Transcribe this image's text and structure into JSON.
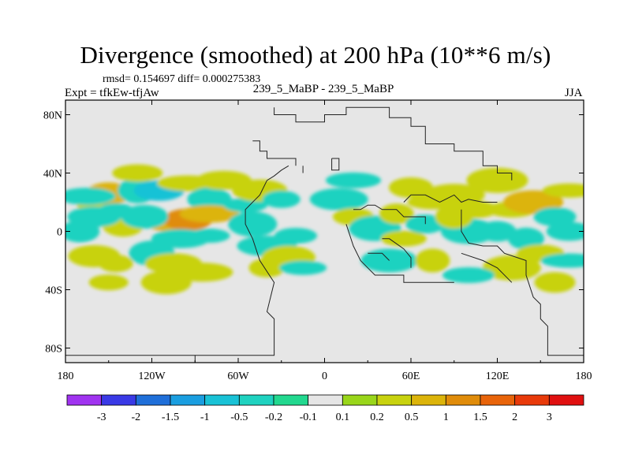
{
  "header": {
    "title": "Divergence (smoothed) at 200 hPa (10**6 m/s)",
    "stats": "rmsd= 0.154697 diff= 0.000275383",
    "experiment": "Expt = tfkEw-tfjAw",
    "case_label": "239_5_MaBP - 239_5_MaBP",
    "season": "JJA"
  },
  "chart_data": {
    "type": "heatmap",
    "title": "Divergence (smoothed) at 200 hPa (10**6 m/s)",
    "xlabel": "",
    "ylabel": "",
    "x_ticks": [
      "180",
      "120W",
      "60W",
      "0",
      "60E",
      "120E",
      "180"
    ],
    "y_ticks": [
      "80N",
      "40N",
      "0",
      "40S",
      "80S"
    ],
    "xlim": [
      -180,
      180
    ],
    "ylim": [
      -90,
      90
    ],
    "background_color": "#e6e6e6",
    "colorbar": {
      "labels": [
        "-3",
        "-2",
        "-1.5",
        "-1",
        "-0.5",
        "-0.2",
        "-0.1",
        "0.1",
        "0.2",
        "0.5",
        "1",
        "1.5",
        "2",
        "3"
      ],
      "colors": [
        "#a033f0",
        "#3a3ae6",
        "#1f6fd9",
        "#1a9ee0",
        "#19c2d6",
        "#1fd2c0",
        "#22d88f",
        "#e6e6e6",
        "#99d61a",
        "#c8d20f",
        "#dcb40a",
        "#e08c0a",
        "#e8640a",
        "#e83a0a",
        "#e01010"
      ]
    },
    "field_blobs": [
      {
        "lon": -160,
        "lat": 18,
        "level": "0.2"
      },
      {
        "lon": -150,
        "lat": 26,
        "level": "0.5"
      },
      {
        "lon": -165,
        "lat": 24,
        "level": "-0.2"
      },
      {
        "lon": -130,
        "lat": 28,
        "level": "-0.2"
      },
      {
        "lon": -115,
        "lat": 28,
        "level": "-0.5"
      },
      {
        "lon": -95,
        "lat": 33,
        "level": "0.2"
      },
      {
        "lon": -80,
        "lat": 22,
        "level": "-0.2"
      },
      {
        "lon": -70,
        "lat": 35,
        "level": "0.2"
      },
      {
        "lon": -110,
        "lat": 5,
        "level": "0.5"
      },
      {
        "lon": -95,
        "lat": 8,
        "level": "1"
      },
      {
        "lon": -80,
        "lat": 12,
        "level": "0.5"
      },
      {
        "lon": -140,
        "lat": 5,
        "level": "0.2"
      },
      {
        "lon": -160,
        "lat": 10,
        "level": "-0.2"
      },
      {
        "lon": -145,
        "lat": 14,
        "level": "-0.2"
      },
      {
        "lon": -125,
        "lat": 10,
        "level": "-0.2"
      },
      {
        "lon": -100,
        "lat": -5,
        "level": "-0.2"
      },
      {
        "lon": -80,
        "lat": -3,
        "level": "-0.2"
      },
      {
        "lon": -160,
        "lat": -17,
        "level": "0.2"
      },
      {
        "lon": -145,
        "lat": -22,
        "level": "0.2"
      },
      {
        "lon": -120,
        "lat": -15,
        "level": "-0.2"
      },
      {
        "lon": -105,
        "lat": -22,
        "level": "0.2"
      },
      {
        "lon": -150,
        "lat": -35,
        "level": "0.2"
      },
      {
        "lon": -110,
        "lat": -35,
        "level": "0.2"
      },
      {
        "lon": -85,
        "lat": -28,
        "level": "0.2"
      },
      {
        "lon": -55,
        "lat": 18,
        "level": "-0.2"
      },
      {
        "lon": -45,
        "lat": 28,
        "level": "0.2"
      },
      {
        "lon": -30,
        "lat": 22,
        "level": "-0.2"
      },
      {
        "lon": -50,
        "lat": 5,
        "level": "-0.2"
      },
      {
        "lon": -40,
        "lat": -10,
        "level": "-0.2"
      },
      {
        "lon": -20,
        "lat": -3,
        "level": "-0.2"
      },
      {
        "lon": -25,
        "lat": -18,
        "level": "0.2"
      },
      {
        "lon": -40,
        "lat": -25,
        "level": "0.2"
      },
      {
        "lon": -15,
        "lat": -25,
        "level": "-0.2"
      },
      {
        "lon": 10,
        "lat": 22,
        "level": "-0.2"
      },
      {
        "lon": 20,
        "lat": 10,
        "level": "0.2"
      },
      {
        "lon": 35,
        "lat": 2,
        "level": "-0.2"
      },
      {
        "lon": 50,
        "lat": 12,
        "level": "0.2"
      },
      {
        "lon": 55,
        "lat": -5,
        "level": "0.2"
      },
      {
        "lon": 45,
        "lat": -20,
        "level": "-0.2"
      },
      {
        "lon": 70,
        "lat": 5,
        "level": "-0.2"
      },
      {
        "lon": 75,
        "lat": 20,
        "level": "0.2"
      },
      {
        "lon": 90,
        "lat": 25,
        "level": "0.2"
      },
      {
        "lon": 105,
        "lat": 15,
        "level": "0.2"
      },
      {
        "lon": 100,
        "lat": 0,
        "level": "-0.2"
      },
      {
        "lon": 120,
        "lat": 0,
        "level": "-0.2"
      },
      {
        "lon": 130,
        "lat": 15,
        "level": "0.2"
      },
      {
        "lon": 145,
        "lat": 20,
        "level": "0.5"
      },
      {
        "lon": 160,
        "lat": 10,
        "level": "-0.2"
      },
      {
        "lon": 170,
        "lat": 28,
        "level": "0.2"
      },
      {
        "lon": 140,
        "lat": -5,
        "level": "-0.2"
      },
      {
        "lon": 150,
        "lat": -15,
        "level": "0.2"
      },
      {
        "lon": 130,
        "lat": -25,
        "level": "0.2"
      },
      {
        "lon": 160,
        "lat": -35,
        "level": "0.2"
      },
      {
        "lon": 100,
        "lat": -30,
        "level": "-0.2"
      },
      {
        "lon": 75,
        "lat": -20,
        "level": "0.2"
      },
      {
        "lon": 170,
        "lat": 0,
        "level": "-0.2"
      },
      {
        "lon": 170,
        "lat": -20,
        "level": "-0.2"
      },
      {
        "lon": -170,
        "lat": 0,
        "level": "-0.2"
      },
      {
        "lon": -130,
        "lat": 40,
        "level": "0.2"
      },
      {
        "lon": 120,
        "lat": 35,
        "level": "0.2"
      },
      {
        "lon": 60,
        "lat": 30,
        "level": "0.2"
      },
      {
        "lon": 20,
        "lat": 35,
        "level": "-0.2"
      },
      {
        "lon": 90,
        "lat": 10,
        "level": "0.2"
      }
    ],
    "boundary_polylines": [
      [
        [
          -90,
          -90
        ],
        [
          -90,
          -85
        ],
        [
          -35,
          -85
        ],
        [
          -35,
          -60
        ],
        [
          -40,
          -55
        ],
        [
          -35,
          -35
        ],
        [
          -45,
          -20
        ],
        [
          -50,
          -5
        ],
        [
          -55,
          5
        ],
        [
          -55,
          15
        ],
        [
          -45,
          25
        ],
        [
          -40,
          35
        ],
        [
          -35,
          38
        ],
        [
          -30,
          42
        ],
        [
          -25,
          45
        ]
      ],
      [
        [
          -35,
          85
        ],
        [
          -35,
          80
        ],
        [
          -20,
          80
        ],
        [
          -20,
          75
        ],
        [
          0,
          75
        ],
        [
          0,
          80
        ],
        [
          15,
          80
        ],
        [
          15,
          85
        ],
        [
          45,
          85
        ],
        [
          45,
          78
        ],
        [
          60,
          78
        ],
        [
          60,
          72
        ],
        [
          70,
          72
        ],
        [
          70,
          60
        ],
        [
          90,
          60
        ],
        [
          90,
          55
        ],
        [
          110,
          55
        ],
        [
          110,
          45
        ],
        [
          120,
          45
        ],
        [
          120,
          40
        ],
        [
          130,
          40
        ],
        [
          130,
          35
        ]
      ],
      [
        [
          -50,
          62
        ],
        [
          -45,
          62
        ],
        [
          -45,
          55
        ],
        [
          -40,
          55
        ],
        [
          -40,
          50
        ],
        [
          -20,
          50
        ],
        [
          -20,
          45
        ]
      ],
      [
        [
          5,
          50
        ],
        [
          5,
          42
        ],
        [
          10,
          42
        ],
        [
          10,
          50
        ],
        [
          5,
          50
        ]
      ],
      [
        [
          -15,
          45
        ],
        [
          -15,
          40
        ]
      ],
      [
        [
          20,
          15
        ],
        [
          25,
          15
        ],
        [
          30,
          18
        ],
        [
          35,
          18
        ],
        [
          40,
          15
        ],
        [
          50,
          15
        ],
        [
          55,
          10
        ],
        [
          70,
          10
        ],
        [
          70,
          5
        ]
      ],
      [
        [
          15,
          5
        ],
        [
          20,
          -10
        ],
        [
          25,
          -20
        ],
        [
          30,
          -25
        ],
        [
          35,
          -30
        ],
        [
          55,
          -30
        ],
        [
          55,
          -35
        ],
        [
          90,
          -35
        ]
      ],
      [
        [
          40,
          -5
        ],
        [
          45,
          -5
        ],
        [
          55,
          -12
        ],
        [
          60,
          -18
        ],
        [
          60,
          -25
        ]
      ],
      [
        [
          55,
          20
        ],
        [
          60,
          25
        ],
        [
          70,
          25
        ],
        [
          80,
          20
        ],
        [
          90,
          25
        ],
        [
          95,
          20
        ],
        [
          100,
          22
        ],
        [
          110,
          20
        ],
        [
          120,
          20
        ]
      ],
      [
        [
          30,
          -15
        ],
        [
          40,
          -15
        ],
        [
          45,
          -20
        ]
      ],
      [
        [
          95,
          15
        ],
        [
          95,
          0
        ],
        [
          100,
          -8
        ],
        [
          110,
          -10
        ],
        [
          120,
          -10
        ],
        [
          125,
          -15
        ],
        [
          140,
          -20
        ],
        [
          140,
          -30
        ],
        [
          145,
          -45
        ],
        [
          150,
          -50
        ],
        [
          150,
          -60
        ],
        [
          155,
          -65
        ],
        [
          155,
          -85
        ],
        [
          180,
          -85
        ]
      ],
      [
        [
          95,
          -15
        ],
        [
          110,
          -20
        ],
        [
          120,
          -25
        ],
        [
          130,
          -35
        ]
      ],
      [
        [
          -180,
          -85
        ],
        [
          -90,
          -85
        ]
      ]
    ]
  }
}
